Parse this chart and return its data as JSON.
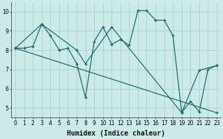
{
  "xlabel": "Humidex (Indice chaleur)",
  "background_color": "#cceae8",
  "grid_color": "#aad4d2",
  "line_color": "#1a6b6b",
  "xlim": [
    -0.5,
    23.5
  ],
  "ylim": [
    4.5,
    10.5
  ],
  "xticks": [
    0,
    1,
    2,
    3,
    4,
    5,
    6,
    7,
    8,
    9,
    10,
    11,
    12,
    13,
    14,
    15,
    16,
    17,
    18,
    19,
    20,
    21,
    22,
    23
  ],
  "yticks": [
    5,
    6,
    7,
    8,
    9,
    10
  ],
  "series1_x": [
    0,
    1,
    2,
    3,
    4,
    5,
    6,
    7,
    8,
    9,
    10,
    11,
    12,
    13,
    14,
    15,
    16,
    17,
    18,
    19,
    20,
    21,
    22,
    23
  ],
  "series1_y": [
    8.1,
    8.1,
    8.2,
    9.35,
    8.75,
    8.0,
    8.1,
    7.3,
    5.55,
    8.45,
    9.2,
    8.3,
    8.55,
    8.25,
    10.05,
    10.05,
    9.55,
    9.55,
    8.75,
    4.75,
    5.35,
    4.8,
    7.0,
    7.2
  ],
  "series2_x": [
    0,
    3,
    7,
    8,
    11,
    19,
    21,
    23
  ],
  "series2_y": [
    8.1,
    9.35,
    8.0,
    7.3,
    9.2,
    4.75,
    6.95,
    7.2
  ],
  "trend_x": [
    0,
    23
  ],
  "trend_y": [
    8.1,
    4.75
  ],
  "font_size_xlabel": 7,
  "marker": "+"
}
